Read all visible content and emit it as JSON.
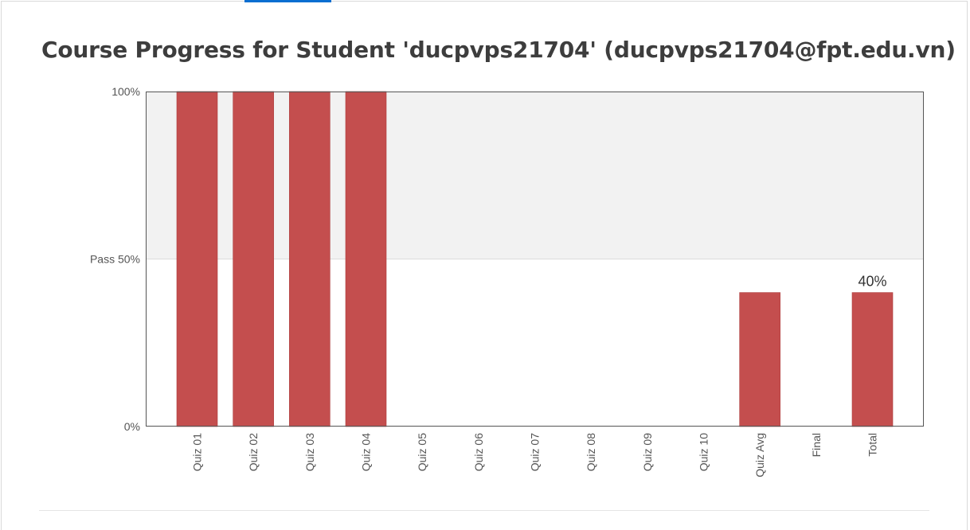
{
  "page": {
    "title": "Course Progress for Student 'ducpvps21704' (ducpvps21704@fpt.edu.vn)"
  },
  "colors": {
    "bar": "#c44e4e",
    "bar_stroke": "#ad3d3d",
    "pass_band": "#f2f2f2",
    "accent_tab": "#0a6ed1"
  },
  "chart_data": {
    "type": "bar",
    "title": "",
    "xlabel": "",
    "ylabel": "",
    "ylim": [
      0,
      100
    ],
    "categories": [
      "Quiz 01",
      "Quiz 02",
      "Quiz 03",
      "Quiz 04",
      "Quiz 05",
      "Quiz 06",
      "Quiz 07",
      "Quiz 08",
      "Quiz 09",
      "Quiz 10",
      "Quiz Avg",
      "Final",
      "Total"
    ],
    "values": [
      100,
      100,
      100,
      100,
      0,
      0,
      0,
      0,
      0,
      0,
      40,
      0,
      40
    ],
    "y_ticks": [
      {
        "value": 0,
        "label": "0%"
      },
      {
        "value": 50,
        "label": "Pass 50%"
      },
      {
        "value": 100,
        "label": "100%"
      }
    ],
    "shaded_band": {
      "from": 50,
      "to": 100
    },
    "annotations": [
      {
        "category": "Total",
        "label": "40%"
      }
    ],
    "grid": false,
    "legend": "none"
  }
}
